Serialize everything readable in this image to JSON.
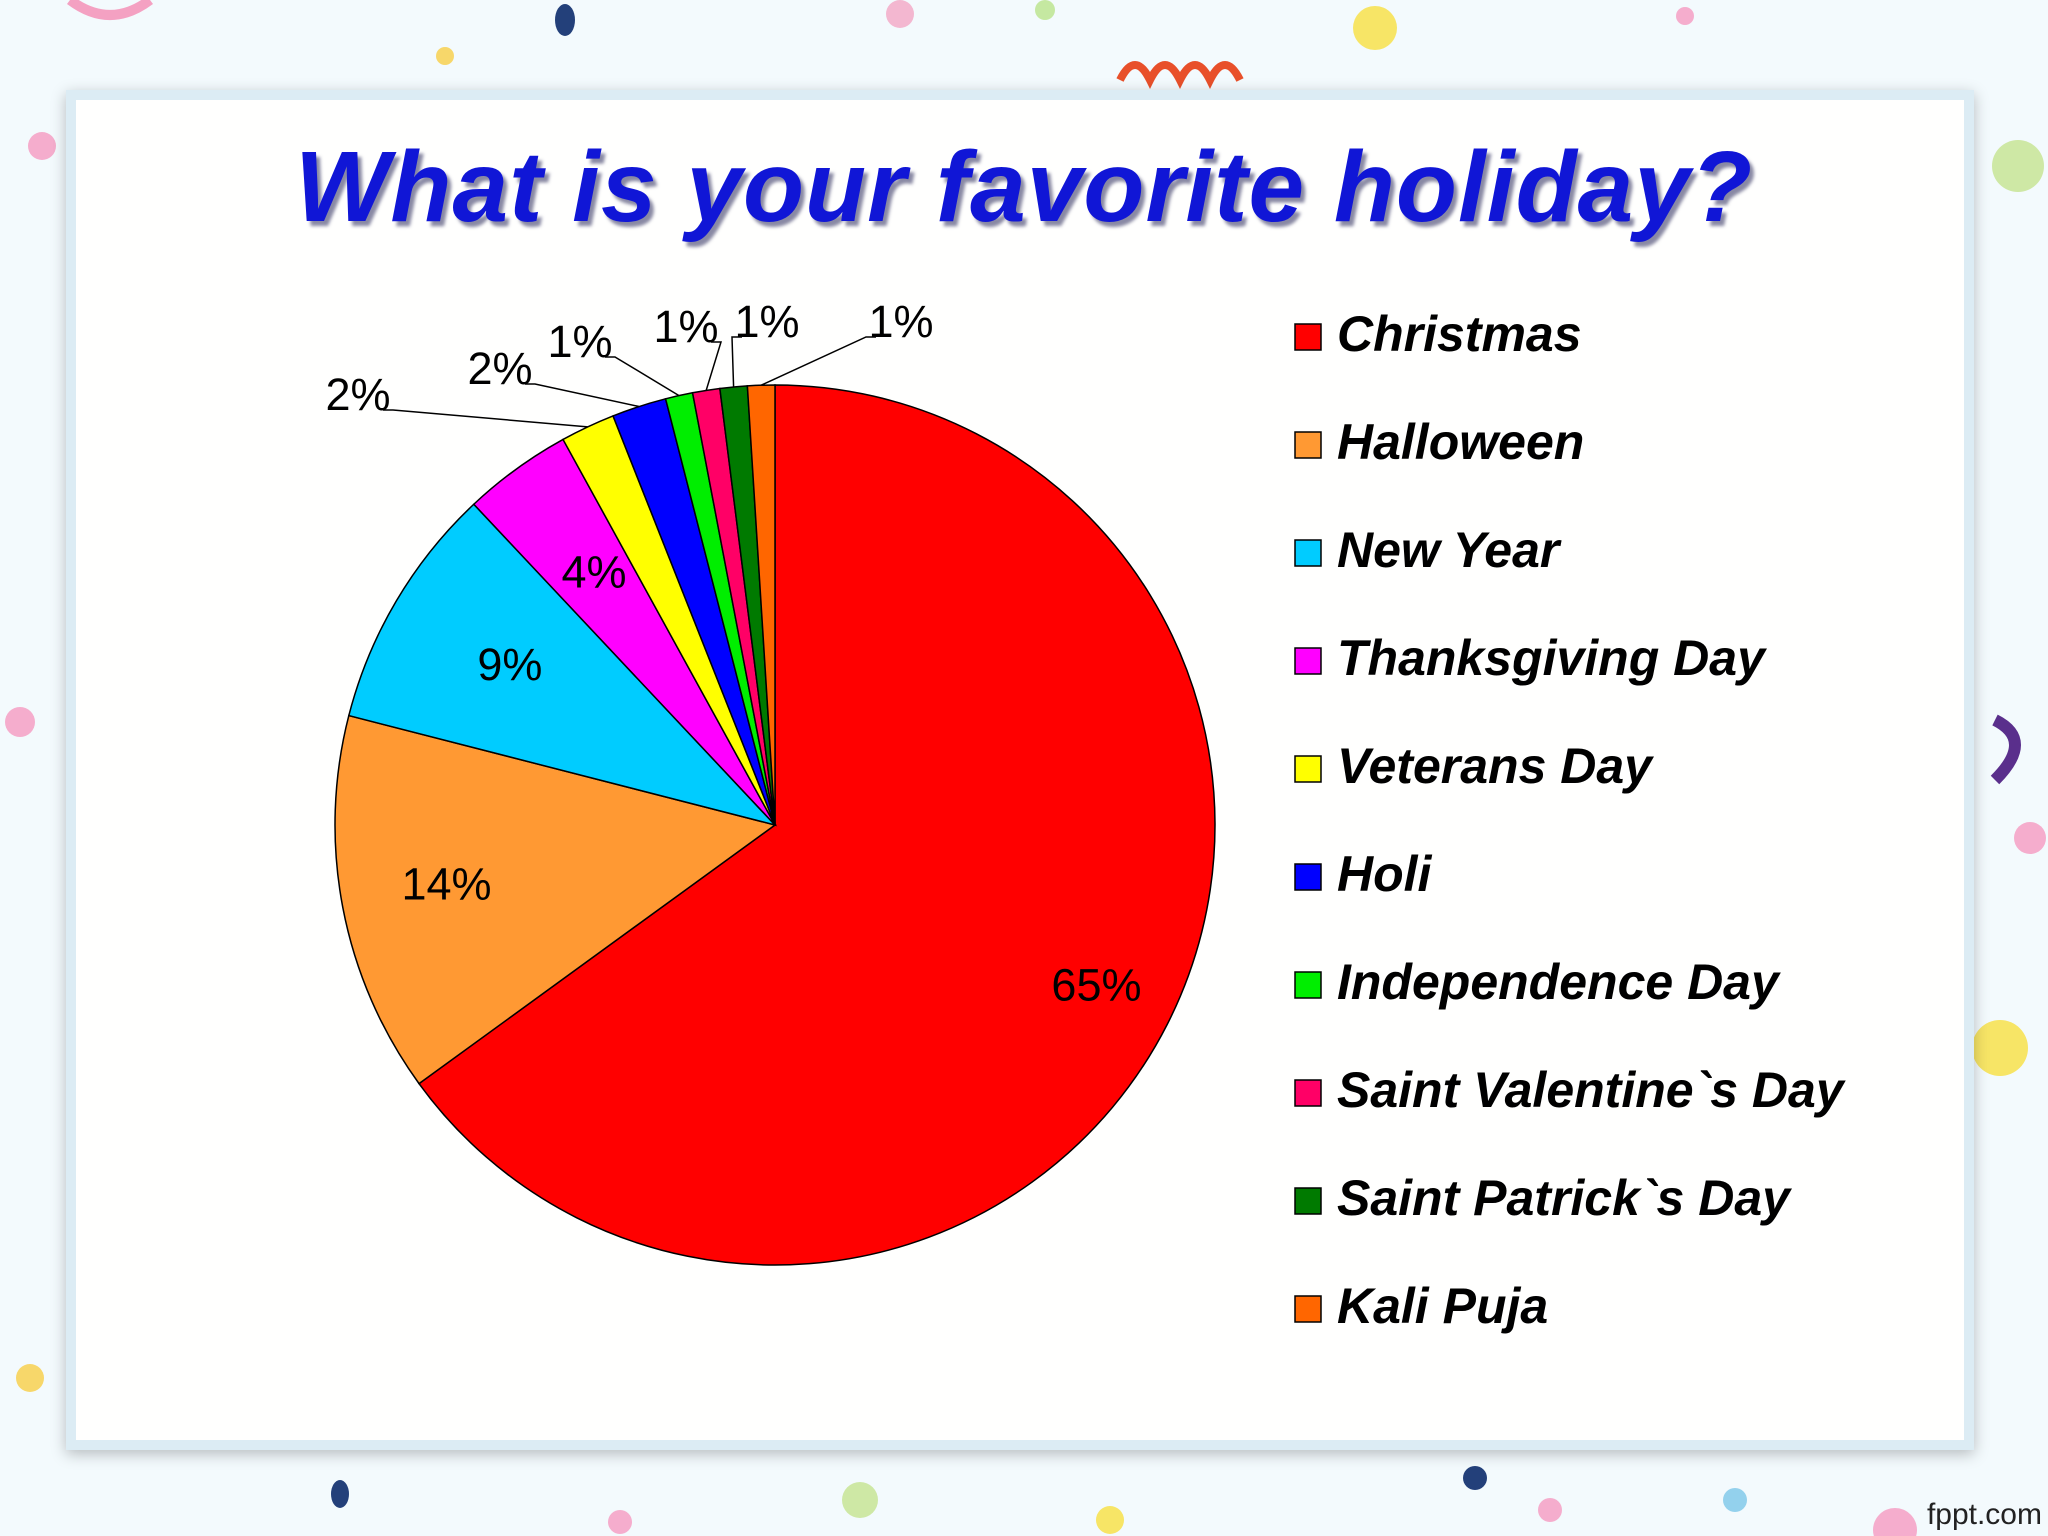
{
  "watermark": "fppt.com",
  "chart_data": {
    "type": "pie",
    "title": "What is your favorite holiday?",
    "legend_position": "right",
    "start_angle_deg": 0,
    "direction": "clockwise",
    "slices": [
      {
        "label": "Christmas",
        "value": 65,
        "display": "65%",
        "color": "#ff0000"
      },
      {
        "label": "Halloween",
        "value": 14,
        "display": "14%",
        "color": "#ff9933"
      },
      {
        "label": "New Year",
        "value": 9,
        "display": "9%",
        "color": "#00ccff"
      },
      {
        "label": "Thanksgiving Day",
        "value": 4,
        "display": "4%",
        "color": "#ff00ff"
      },
      {
        "label": "Veterans Day",
        "value": 2,
        "display": "2%",
        "color": "#ffff00"
      },
      {
        "label": "Holi",
        "value": 2,
        "display": "2%",
        "color": "#0000ff"
      },
      {
        "label": "Independence Day",
        "value": 1,
        "display": "1%",
        "color": "#00ee00"
      },
      {
        "label": "Saint Valentine`s Day",
        "value": 1,
        "display": "1%",
        "color": "#ff0066"
      },
      {
        "label": "Saint Patrick`s Day",
        "value": 1,
        "display": "1%",
        "color": "#007a00"
      },
      {
        "label": "Kali Puja",
        "value": 1,
        "display": "1%",
        "color": "#ff6600"
      }
    ]
  }
}
